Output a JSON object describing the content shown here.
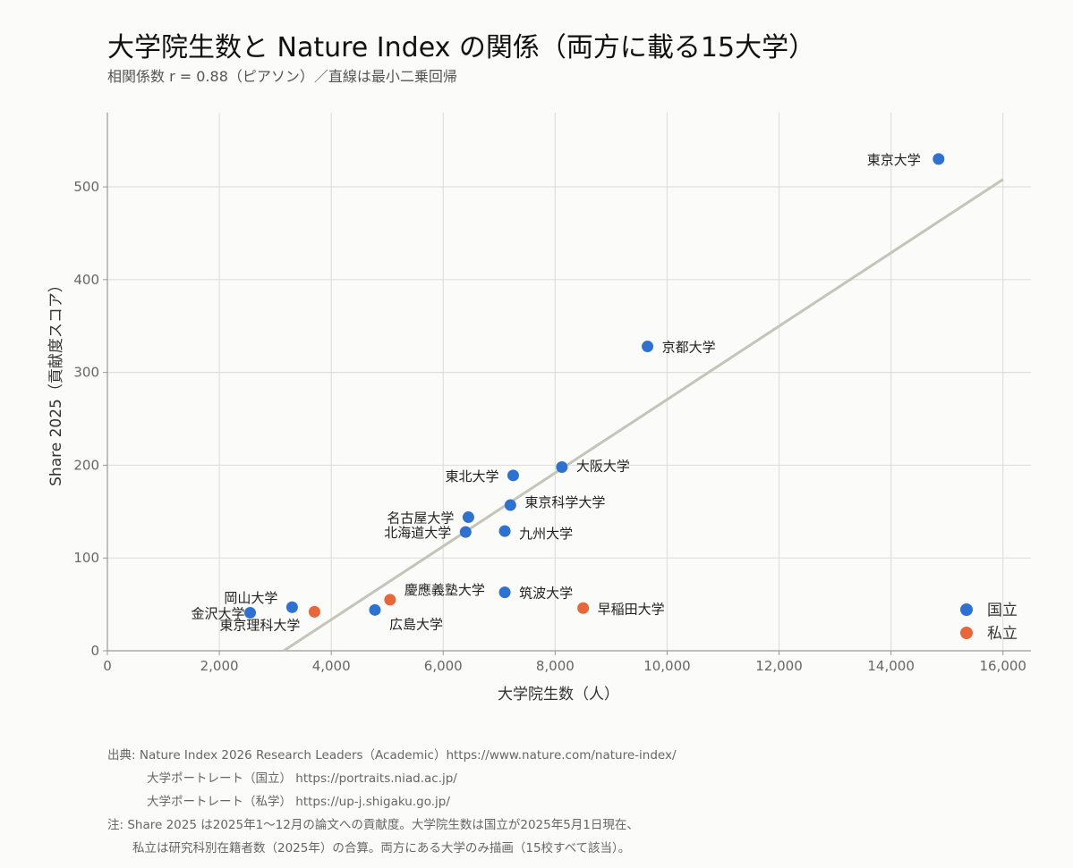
{
  "title": "大学院生数と Nature Index の関係（両方に載る15大学）",
  "subtitle": "相関係数 r = 0.88（ピアソン）／直線は最小二乗回帰",
  "colors": {
    "national": "#2d72d2",
    "private": "#e8663a",
    "trend": "#c4c4b8",
    "grid": "#e0e0da",
    "axis": "#9a9a94"
  },
  "chart_data": {
    "type": "scatter",
    "xlabel": "大学院生数（人）",
    "ylabel": "Share 2025（貢献度スコア）",
    "xlim": [
      0,
      16500
    ],
    "ylim": [
      0,
      580
    ],
    "xticks": [
      0,
      2000,
      4000,
      6000,
      8000,
      10000,
      12000,
      14000,
      16000
    ],
    "xtick_labels": [
      "0",
      "2,000",
      "4,000",
      "6,000",
      "8,000",
      "10,000",
      "12,000",
      "14,000",
      "16,000"
    ],
    "yticks": [
      0,
      100,
      200,
      300,
      400,
      500
    ],
    "ytick_labels": [
      "0",
      "100",
      "200",
      "300",
      "400",
      "500"
    ],
    "grid": true,
    "legend_position": "bottom-right",
    "series": [
      {
        "name": "国立",
        "color": "#2d72d2",
        "points": [
          {
            "label": "東京大学",
            "x": 14850,
            "y": 530
          },
          {
            "label": "京都大学",
            "x": 9650,
            "y": 328
          },
          {
            "label": "大阪大学",
            "x": 8120,
            "y": 198
          },
          {
            "label": "東北大学",
            "x": 7250,
            "y": 189
          },
          {
            "label": "東京科学大学",
            "x": 7200,
            "y": 157
          },
          {
            "label": "名古屋大学",
            "x": 6450,
            "y": 144
          },
          {
            "label": "北海道大学",
            "x": 6400,
            "y": 128
          },
          {
            "label": "九州大学",
            "x": 7100,
            "y": 129
          },
          {
            "label": "筑波大学",
            "x": 7100,
            "y": 63
          },
          {
            "label": "広島大学",
            "x": 4780,
            "y": 44
          },
          {
            "label": "岡山大学",
            "x": 3300,
            "y": 47
          },
          {
            "label": "金沢大学",
            "x": 2550,
            "y": 41
          }
        ]
      },
      {
        "name": "私立",
        "color": "#e8663a",
        "points": [
          {
            "label": "慶應義塾大学",
            "x": 5050,
            "y": 55
          },
          {
            "label": "早稲田大学",
            "x": 8500,
            "y": 46
          },
          {
            "label": "東京理科大学",
            "x": 3700,
            "y": 42
          }
        ]
      }
    ],
    "trend_line": {
      "x1": 3150,
      "y1": 0,
      "x2": 16000,
      "y2": 508
    }
  },
  "footer": {
    "line1": "出典: Nature Index 2026 Research Leaders（Academic）https://www.nature.com/nature-index/",
    "line2": "大学ポートレート（国立） https://portraits.niad.ac.jp/",
    "line3": "大学ポートレート（私学） https://up-j.shigaku.go.jp/",
    "line4": "注: Share 2025 は2025年1〜12月の論文への貢献度。大学院生数は国立が2025年5月1日現在、",
    "line5": "私立は研究科別在籍者数（2025年）の合算。両方にある大学のみ描画（15校すべて該当）。"
  }
}
